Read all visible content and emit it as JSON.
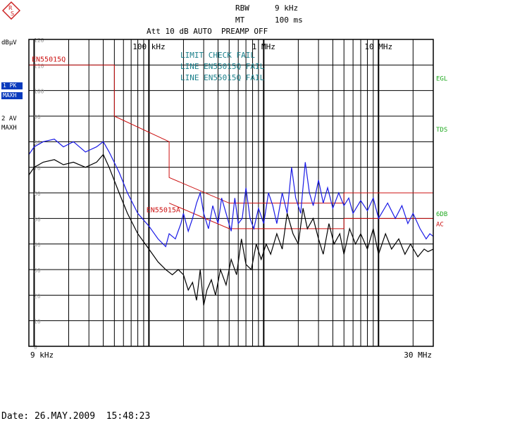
{
  "header": {
    "rbw_label": "RBW",
    "rbw_value": "9 kHz",
    "mt_label": "MT",
    "mt_value": "100 ms",
    "att_line": "Att 10 dB AUTO  PREAMP OFF"
  },
  "side": {
    "unit": "dBµV",
    "trace1_badge_a": "1 PK",
    "trace1_badge_b": "MAXH",
    "trace2_label_a": "2 AV",
    "trace2_label_b": "MAXH"
  },
  "messages": [
    "LIMIT CHECK  FAIL",
    "LINE EN55015Q FAIL",
    "LINE EN55015Q FAIL"
  ],
  "footer": {
    "date": "Date: 26.MAY.2009  15:48:23"
  },
  "colors": {
    "peak_trace": "#1a1ae6",
    "average_trace": "#000000",
    "limit_line": "#cc1111",
    "right_markers": "#22aa22",
    "messages": "#1a7f8a",
    "badge": "#0a3bbd"
  },
  "chart_data": {
    "type": "line",
    "x_scale": "log",
    "xlim": [
      9000,
      30000000
    ],
    "ylim": [
      0,
      120
    ],
    "ylabel": "dBµV",
    "grid": true,
    "x_tick_labels": [
      {
        "value": 9000,
        "label": "9 kHz"
      },
      {
        "value": 100000,
        "label": "100 kHz"
      },
      {
        "value": 1000000,
        "label": "1 MHz"
      },
      {
        "value": 10000000,
        "label": "10 MHz"
      },
      {
        "value": 30000000,
        "label": "30 MHz"
      }
    ],
    "y_ticks": [
      0,
      10,
      20,
      30,
      40,
      50,
      60,
      70,
      80,
      90,
      100,
      110,
      120
    ],
    "y_tick_labels": [
      "0",
      "10",
      "20",
      "30",
      "40",
      "50",
      "60",
      "70",
      "80",
      "90",
      "100",
      "110",
      "120"
    ],
    "limit_lines": [
      {
        "name": "EN55015Q",
        "label_position": "top-left",
        "points": [
          [
            9000,
            110
          ],
          [
            50000,
            110
          ],
          [
            50000,
            90
          ],
          [
            150000,
            80
          ],
          [
            150000,
            66
          ],
          [
            500000,
            56
          ],
          [
            5000000,
            56
          ],
          [
            5000000,
            60
          ],
          [
            30000000,
            60
          ]
        ]
      },
      {
        "name": "EN55015A",
        "label": "EN55015A",
        "points": [
          [
            150000,
            56
          ],
          [
            500000,
            46
          ],
          [
            5000000,
            46
          ],
          [
            5000000,
            50
          ],
          [
            30000000,
            50
          ]
        ]
      }
    ],
    "right_markers": [
      "EGL",
      "TDS",
      "6DB",
      "AC"
    ],
    "series": [
      {
        "name": "1 PK MAXH",
        "points": [
          [
            9000,
            75
          ],
          [
            10000,
            78
          ],
          [
            12000,
            80
          ],
          [
            15000,
            81
          ],
          [
            18000,
            78
          ],
          [
            22000,
            80
          ],
          [
            28000,
            76
          ],
          [
            35000,
            78
          ],
          [
            40000,
            80
          ],
          [
            45000,
            76
          ],
          [
            55000,
            68
          ],
          [
            65000,
            60
          ],
          [
            80000,
            52
          ],
          [
            100000,
            47
          ],
          [
            120000,
            42
          ],
          [
            140000,
            39
          ],
          [
            150000,
            44
          ],
          [
            170000,
            42
          ],
          [
            190000,
            48
          ],
          [
            200000,
            52
          ],
          [
            220000,
            45
          ],
          [
            240000,
            50
          ],
          [
            260000,
            56
          ],
          [
            280000,
            60
          ],
          [
            300000,
            52
          ],
          [
            330000,
            46
          ],
          [
            360000,
            55
          ],
          [
            400000,
            48
          ],
          [
            430000,
            58
          ],
          [
            470000,
            52
          ],
          [
            520000,
            45
          ],
          [
            560000,
            58
          ],
          [
            600000,
            48
          ],
          [
            650000,
            50
          ],
          [
            700000,
            62
          ],
          [
            760000,
            50
          ],
          [
            820000,
            46
          ],
          [
            900000,
            54
          ],
          [
            1000000,
            48
          ],
          [
            1100000,
            60
          ],
          [
            1200000,
            55
          ],
          [
            1300000,
            48
          ],
          [
            1450000,
            60
          ],
          [
            1600000,
            52
          ],
          [
            1750000,
            70
          ],
          [
            1900000,
            58
          ],
          [
            2100000,
            52
          ],
          [
            2300000,
            72
          ],
          [
            2500000,
            60
          ],
          [
            2700000,
            55
          ],
          [
            3000000,
            65
          ],
          [
            3300000,
            56
          ],
          [
            3600000,
            62
          ],
          [
            4000000,
            54
          ],
          [
            4500000,
            60
          ],
          [
            5000000,
            55
          ],
          [
            5500000,
            58
          ],
          [
            6000000,
            52
          ],
          [
            7000000,
            57
          ],
          [
            8000000,
            53
          ],
          [
            9000000,
            58
          ],
          [
            10000000,
            50
          ],
          [
            12000000,
            56
          ],
          [
            14000000,
            50
          ],
          [
            16000000,
            55
          ],
          [
            18000000,
            48
          ],
          [
            20000000,
            52
          ],
          [
            23000000,
            46
          ],
          [
            26000000,
            42
          ],
          [
            28000000,
            44
          ],
          [
            30000000,
            43
          ]
        ]
      },
      {
        "name": "2 AV MAXH",
        "points": [
          [
            9000,
            67
          ],
          [
            10000,
            70
          ],
          [
            12000,
            72
          ],
          [
            15000,
            73
          ],
          [
            18000,
            71
          ],
          [
            22000,
            72
          ],
          [
            28000,
            70
          ],
          [
            35000,
            72
          ],
          [
            40000,
            75
          ],
          [
            45000,
            70
          ],
          [
            55000,
            60
          ],
          [
            65000,
            52
          ],
          [
            80000,
            44
          ],
          [
            100000,
            38
          ],
          [
            120000,
            33
          ],
          [
            140000,
            30
          ],
          [
            160000,
            28
          ],
          [
            180000,
            30
          ],
          [
            200000,
            28
          ],
          [
            220000,
            22
          ],
          [
            240000,
            25
          ],
          [
            260000,
            18
          ],
          [
            280000,
            30
          ],
          [
            300000,
            16
          ],
          [
            320000,
            22
          ],
          [
            350000,
            26
          ],
          [
            380000,
            20
          ],
          [
            420000,
            30
          ],
          [
            470000,
            24
          ],
          [
            520000,
            34
          ],
          [
            580000,
            28
          ],
          [
            640000,
            42
          ],
          [
            700000,
            32
          ],
          [
            780000,
            30
          ],
          [
            860000,
            40
          ],
          [
            950000,
            34
          ],
          [
            1050000,
            40
          ],
          [
            1150000,
            36
          ],
          [
            1300000,
            44
          ],
          [
            1450000,
            38
          ],
          [
            1600000,
            52
          ],
          [
            1800000,
            44
          ],
          [
            2000000,
            40
          ],
          [
            2200000,
            54
          ],
          [
            2400000,
            46
          ],
          [
            2700000,
            50
          ],
          [
            3000000,
            42
          ],
          [
            3300000,
            36
          ],
          [
            3700000,
            48
          ],
          [
            4100000,
            40
          ],
          [
            4600000,
            44
          ],
          [
            5000000,
            36
          ],
          [
            5600000,
            46
          ],
          [
            6300000,
            40
          ],
          [
            7000000,
            44
          ],
          [
            8000000,
            38
          ],
          [
            9000000,
            46
          ],
          [
            10000000,
            36
          ],
          [
            11500000,
            44
          ],
          [
            13000000,
            38
          ],
          [
            15000000,
            42
          ],
          [
            17000000,
            36
          ],
          [
            19000000,
            40
          ],
          [
            22000000,
            35
          ],
          [
            25000000,
            38
          ],
          [
            27000000,
            37
          ],
          [
            30000000,
            38
          ]
        ]
      }
    ]
  }
}
